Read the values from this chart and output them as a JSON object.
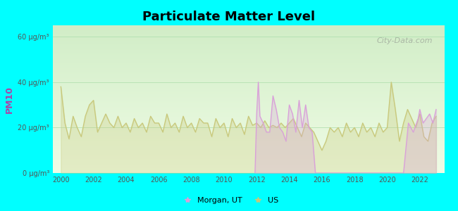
{
  "title": "Particulate Matter Level",
  "ylabel": "PM10",
  "background_color": "#00FFFF",
  "plot_bg_color_top": "#e8f5e0",
  "plot_bg_color_bottom": "#f0fce8",
  "watermark": "City-Data.com",
  "yticks": [
    0,
    20,
    40,
    60
  ],
  "ytick_labels": [
    "0 μg/m³",
    "20 μg/m³",
    "40 μg/m³",
    "60 μg/m³"
  ],
  "xticks": [
    2000,
    2002,
    2004,
    2006,
    2008,
    2010,
    2012,
    2014,
    2016,
    2018,
    2020,
    2022
  ],
  "morgan_color": "#d9a0d9",
  "us_color": "#c8c87a",
  "legend_morgan": "Morgan, UT",
  "legend_us": "US",
  "xmin": 1999.5,
  "xmax": 2023.5,
  "ymin": 0,
  "ymax": 65,
  "us_data": {
    "years": [
      2000,
      2000.25,
      2000.5,
      2000.75,
      2001,
      2001.25,
      2001.5,
      2001.75,
      2002,
      2002.25,
      2002.5,
      2002.75,
      2003,
      2003.25,
      2003.5,
      2003.75,
      2004,
      2004.25,
      2004.5,
      2004.75,
      2005,
      2005.25,
      2005.5,
      2005.75,
      2006,
      2006.25,
      2006.5,
      2006.75,
      2007,
      2007.25,
      2007.5,
      2007.75,
      2008,
      2008.25,
      2008.5,
      2008.75,
      2009,
      2009.25,
      2009.5,
      2009.75,
      2010,
      2010.25,
      2010.5,
      2010.75,
      2011,
      2011.25,
      2011.5,
      2011.75,
      2012,
      2012.25,
      2012.5,
      2012.75,
      2013,
      2013.25,
      2013.5,
      2013.75,
      2014,
      2014.25,
      2014.5,
      2014.75,
      2015,
      2015.25,
      2015.5,
      2015.75,
      2016,
      2016.25,
      2016.5,
      2016.75,
      2017,
      2017.25,
      2017.5,
      2017.75,
      2018,
      2018.25,
      2018.5,
      2018.75,
      2019,
      2019.25,
      2019.5,
      2019.75,
      2020,
      2020.25,
      2020.5,
      2020.75,
      2021,
      2021.25,
      2021.5,
      2021.75,
      2022,
      2022.25,
      2022.5,
      2022.75,
      2023
    ],
    "values": [
      38,
      22,
      15,
      25,
      20,
      16,
      25,
      30,
      32,
      18,
      22,
      26,
      22,
      20,
      25,
      20,
      22,
      18,
      24,
      20,
      22,
      18,
      25,
      22,
      22,
      18,
      26,
      20,
      22,
      18,
      25,
      20,
      22,
      18,
      24,
      22,
      22,
      16,
      24,
      20,
      22,
      16,
      24,
      20,
      22,
      17,
      25,
      21,
      22,
      20,
      23,
      20,
      21,
      20,
      22,
      20,
      22,
      24,
      20,
      16,
      22,
      20,
      18,
      14,
      10,
      14,
      20,
      18,
      20,
      16,
      22,
      18,
      20,
      16,
      22,
      18,
      20,
      16,
      22,
      18,
      20,
      40,
      28,
      14,
      22,
      28,
      24,
      20,
      26,
      16,
      14,
      22,
      25
    ]
  },
  "morgan_data": {
    "years": [
      2011.9,
      2012,
      2012.1,
      2012.2,
      2012.4,
      2012.6,
      2012.8,
      2013,
      2013.2,
      2013.4,
      2013.6,
      2013.8,
      2014,
      2014.2,
      2014.4,
      2014.6,
      2014.8,
      2015,
      2015.2,
      2015.4,
      2015.6,
      2021,
      2021.3,
      2021.6,
      2021.9,
      2022,
      2022.2,
      2022.4,
      2022.6,
      2022.8,
      2023
    ],
    "values": [
      0,
      26,
      40,
      25,
      22,
      18,
      18,
      34,
      28,
      20,
      18,
      14,
      30,
      26,
      18,
      32,
      20,
      30,
      20,
      18,
      0,
      0,
      22,
      18,
      24,
      28,
      22,
      24,
      26,
      22,
      28
    ]
  }
}
